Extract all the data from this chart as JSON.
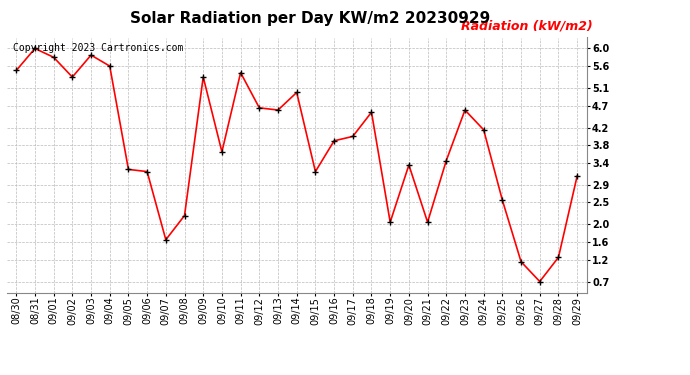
{
  "title": "Solar Radiation per Day KW/m2 20230929",
  "copyright_text": "Copyright 2023 Cartronics.com",
  "legend_label": "Radiation (kW/m2)",
  "dates": [
    "08/30",
    "08/31",
    "09/01",
    "09/02",
    "09/03",
    "09/04",
    "09/05",
    "09/06",
    "09/07",
    "09/08",
    "09/09",
    "09/10",
    "09/11",
    "09/12",
    "09/13",
    "09/14",
    "09/15",
    "09/16",
    "09/17",
    "09/18",
    "09/19",
    "09/20",
    "09/21",
    "09/22",
    "09/23",
    "09/24",
    "09/25",
    "09/26",
    "09/27",
    "09/28",
    "09/29"
  ],
  "values": [
    5.5,
    6.0,
    5.8,
    5.35,
    5.85,
    5.6,
    3.25,
    3.2,
    1.65,
    2.2,
    5.35,
    3.65,
    5.45,
    4.65,
    4.6,
    5.0,
    3.2,
    3.9,
    4.0,
    4.55,
    2.05,
    3.35,
    2.05,
    3.45,
    4.6,
    4.15,
    2.55,
    1.15,
    0.7,
    1.25,
    3.1
  ],
  "line_color": "red",
  "marker_color": "black",
  "bg_color": "white",
  "grid_color": "#bbbbbb",
  "ylim_min": 0.45,
  "ylim_max": 6.25,
  "yticks": [
    0.7,
    1.2,
    1.6,
    2.0,
    2.5,
    2.9,
    3.4,
    3.8,
    4.2,
    4.7,
    5.1,
    5.6,
    6.0
  ],
  "title_fontsize": 11,
  "copyright_fontsize": 7,
  "legend_fontsize": 9,
  "tick_fontsize": 7,
  "line_width": 1.2,
  "marker_size": 5
}
